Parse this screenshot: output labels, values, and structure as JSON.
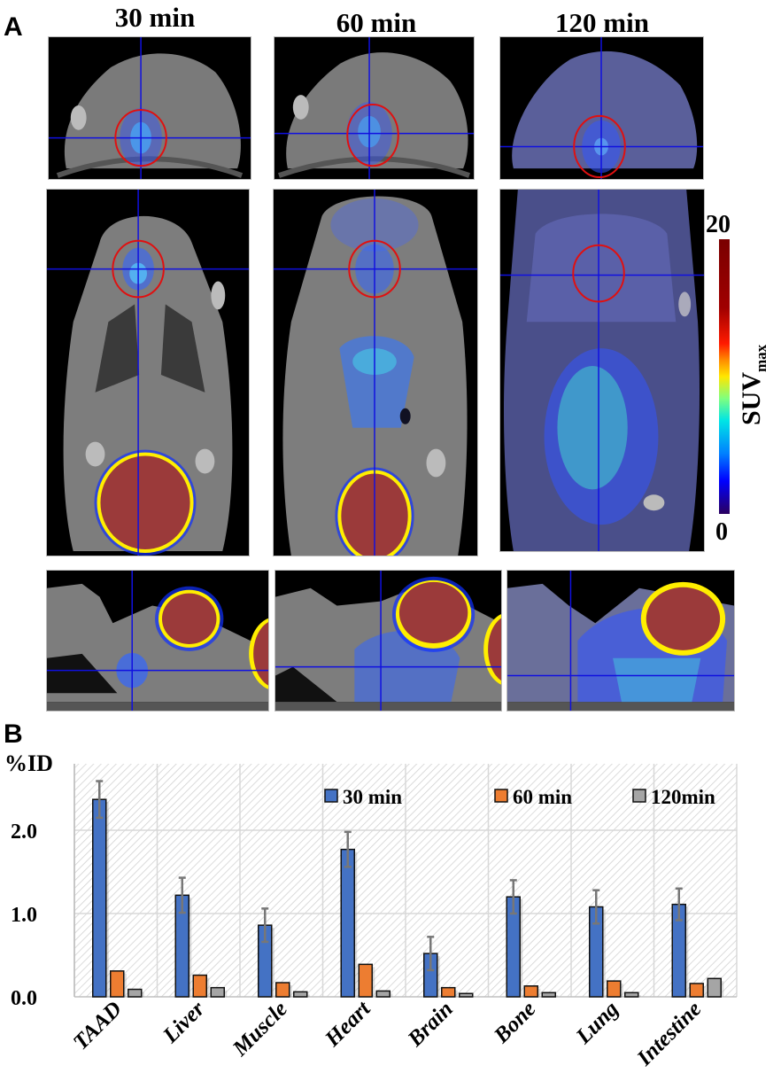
{
  "panel_a": {
    "letter": "A",
    "columns": [
      "30 min",
      "60 min",
      "120 min"
    ],
    "views": [
      "transverse",
      "coronal",
      "sagittal"
    ],
    "colorbar": {
      "max_label": "20",
      "min_label": "0",
      "title": "SUV",
      "title_sub": "max"
    }
  },
  "panel_b": {
    "letter": "B",
    "y_axis_label": "%ID",
    "y_ticks": [
      "0.0",
      "1.0",
      "2.0"
    ],
    "legend": [
      "30 min",
      "60 min",
      "120min"
    ]
  },
  "chart_data": {
    "type": "bar",
    "title": "",
    "xlabel": "",
    "ylabel": "%ID",
    "ylim": [
      0,
      2.8
    ],
    "yticks": [
      0.0,
      1.0,
      2.0
    ],
    "grid": true,
    "legend_position": "top-right (inside)",
    "categories": [
      "TAAD",
      "Liver",
      "Muscle",
      "Heart",
      "Brain",
      "Bone",
      "Lung",
      "Intestine"
    ],
    "series": [
      {
        "name": "30 min",
        "color": "#4472C4",
        "values": [
          2.37,
          1.22,
          0.86,
          1.77,
          0.52,
          1.2,
          1.08,
          1.11
        ],
        "error": [
          0.22,
          0.21,
          0.2,
          0.21,
          0.2,
          0.2,
          0.2,
          0.19
        ]
      },
      {
        "name": "60 min",
        "color": "#ED7D31",
        "values": [
          0.31,
          0.26,
          0.17,
          0.39,
          0.11,
          0.13,
          0.19,
          0.16
        ]
      },
      {
        "name": "120min",
        "color": "#A5A5A5",
        "values": [
          0.09,
          0.11,
          0.06,
          0.07,
          0.04,
          0.05,
          0.05,
          0.22
        ]
      }
    ]
  }
}
